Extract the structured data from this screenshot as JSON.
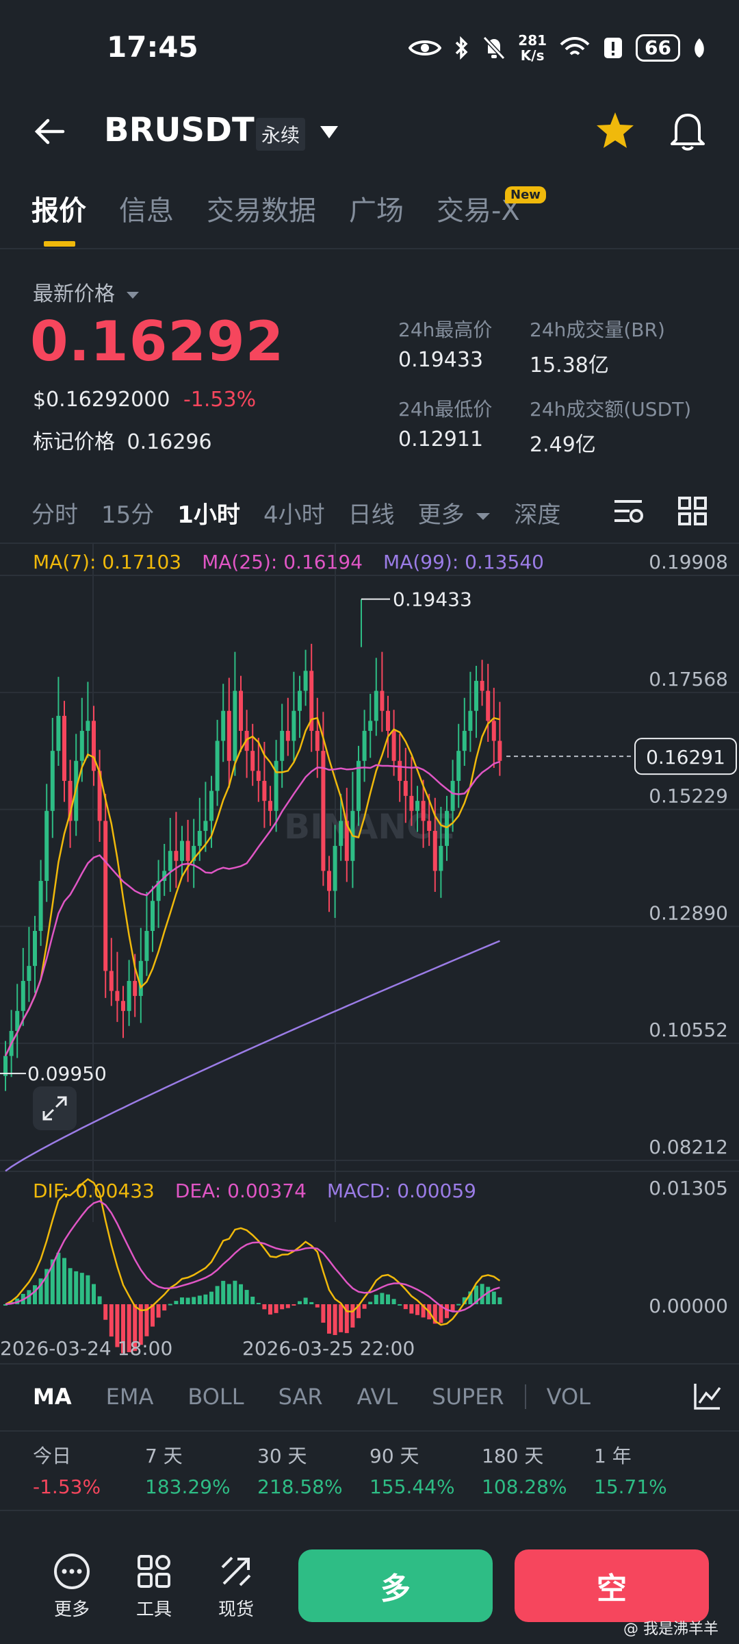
{
  "status": {
    "time": "17:45",
    "speed_top": "281",
    "speed_bottom": "K/s",
    "battery": "66"
  },
  "header": {
    "symbol": "BRUSDT",
    "contract_type": "永续"
  },
  "tabs": [
    {
      "label": "报价"
    },
    {
      "label": "信息"
    },
    {
      "label": "交易数据"
    },
    {
      "label": "广场"
    },
    {
      "label": "交易-X"
    }
  ],
  "new_badge": "New",
  "price": {
    "latest_label": "最新价格",
    "last": "0.16292",
    "usd": "$0.16292000",
    "change": "-1.53%",
    "mark_label": "标记价格",
    "mark": "0.16296"
  },
  "stats": {
    "high_label": "24h最高价",
    "high": "0.19433",
    "vol_label": "24h成交量(BR)",
    "vol": "15.38亿",
    "low_label": "24h最低价",
    "low": "0.12911",
    "amount_label": "24h成交额(USDT)",
    "amount": "2.49亿"
  },
  "intervals": [
    "分时",
    "15分",
    "1小时",
    "4小时",
    "日线",
    "更多",
    "深度"
  ],
  "ma_legend": {
    "ma7": "MA(7): 0.17103",
    "ma25": "MA(25): 0.16194",
    "ma99": "MA(99): 0.13540"
  },
  "macd_legend": {
    "dif": "DIF: 0.00433",
    "dea": "DEA: 0.00374",
    "macd": "MACD: 0.00059"
  },
  "colors": {
    "up": "#2ebd85",
    "down": "#f6465d",
    "ma7": "#f0b90b",
    "ma25": "#e056c5",
    "ma99": "#9b7ce6",
    "accent": "#f0b90b"
  },
  "chart_data": {
    "type": "candlestick",
    "price_axis_ticks": [
      "0.19908",
      "0.17568",
      "0.15229",
      "0.12890",
      "0.10552",
      "0.08212"
    ],
    "ylim": [
      0.08212,
      0.19908
    ],
    "current_price_tag": "0.16291",
    "high_marker": "0.19433",
    "low_marker": "0.09950",
    "time_labels": [
      "2026-03-24 18:00",
      "2026-03-25 22:00"
    ],
    "macd_axis_ticks": [
      "0.01305",
      "0.00000"
    ],
    "watermark": "BINANCE",
    "closes": [
      0.103,
      0.108,
      0.112,
      0.118,
      0.121,
      0.128,
      0.138,
      0.152,
      0.164,
      0.171,
      0.158,
      0.15,
      0.162,
      0.168,
      0.17,
      0.16,
      0.15,
      0.12,
      0.116,
      0.114,
      0.112,
      0.118,
      0.115,
      0.122,
      0.128,
      0.134,
      0.138,
      0.14,
      0.144,
      0.142,
      0.146,
      0.142,
      0.145,
      0.148,
      0.15,
      0.156,
      0.166,
      0.172,
      0.162,
      0.176,
      0.168,
      0.164,
      0.16,
      0.158,
      0.154,
      0.152,
      0.162,
      0.168,
      0.166,
      0.172,
      0.176,
      0.18,
      0.168,
      0.164,
      0.14,
      0.136,
      0.145,
      0.15,
      0.142,
      0.152,
      0.162,
      0.168,
      0.17,
      0.176,
      0.172,
      0.168,
      0.162,
      0.158,
      0.155,
      0.152,
      0.154,
      0.15,
      0.148,
      0.14,
      0.145,
      0.152,
      0.158,
      0.164,
      0.168,
      0.172,
      0.178,
      0.176,
      0.17,
      0.166,
      0.162
    ],
    "ma99": [
      0.08,
      0.126
    ]
  },
  "indicator_tabs": [
    "MA",
    "EMA",
    "BOLL",
    "SAR",
    "AVL",
    "SUPER",
    "VOL"
  ],
  "performance": [
    {
      "label": "今日",
      "value": "-1.53%",
      "dir": "down"
    },
    {
      "label": "7 天",
      "value": "183.29%",
      "dir": "up"
    },
    {
      "label": "30 天",
      "value": "218.58%",
      "dir": "up"
    },
    {
      "label": "90 天",
      "value": "155.44%",
      "dir": "up"
    },
    {
      "label": "180 天",
      "value": "108.28%",
      "dir": "up"
    },
    {
      "label": "1 年",
      "value": "15.71%",
      "dir": "up"
    }
  ],
  "bottom": {
    "more": "更多",
    "tools": "工具",
    "spot": "现货",
    "long": "多",
    "short": "空",
    "credit": "@ 我是沸羊羊"
  }
}
